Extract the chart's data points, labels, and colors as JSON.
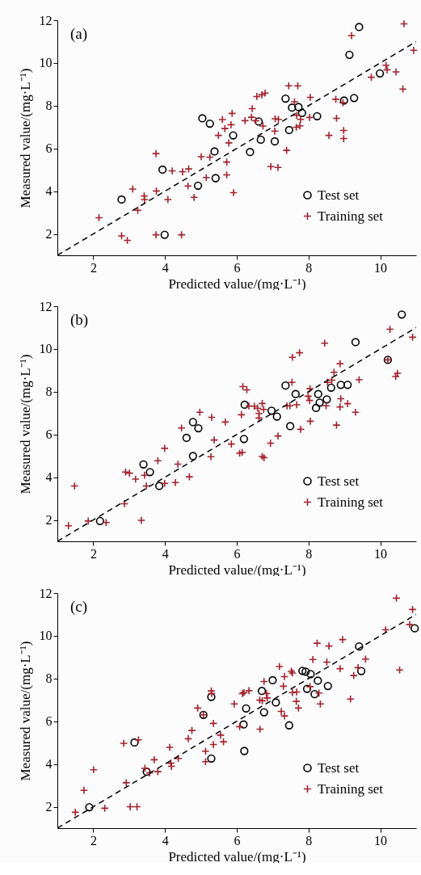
{
  "chart_data": [
    {
      "type": "scatter",
      "xlabel": "Predicted value/(mg·L⁻¹)",
      "ylabel": "Measured value/(mg·L⁻¹)",
      "xlim": [
        1,
        11
      ],
      "ylim": [
        1,
        12
      ],
      "xticks": [
        2,
        4,
        6,
        8,
        10
      ],
      "yticks": [
        2,
        4,
        6,
        8,
        10,
        12
      ],
      "legend": "bottom right",
      "annotations": [
        "(a)"
      ],
      "series": [
        {
          "name": "Test set",
          "color": "#000000",
          "marker": "circle",
          "x": [
            2.79,
            3.93,
            3.99,
            4.92,
            5.04,
            5.25,
            5.38,
            5.41,
            5.9,
            6.37,
            6.61,
            6.67,
            7.06,
            7.36,
            7.46,
            7.54,
            7.72,
            7.82,
            8.24,
            8.99,
            9.14,
            9.27,
            9.41,
            9.99
          ],
          "values": [
            3.61,
            5.01,
            1.96,
            4.26,
            7.41,
            7.16,
            5.86,
            4.61,
            6.61,
            5.83,
            7.26,
            6.41,
            6.33,
            8.33,
            6.86,
            7.91,
            7.94,
            7.66,
            7.51,
            8.24,
            10.38,
            8.36,
            11.68,
            9.51
          ]
        },
        {
          "name": "Training set",
          "color": "#a3222c",
          "marker": "cross",
          "x": [
            2.16,
            2.79,
            2.95,
            3.1,
            3.24,
            3.42,
            3.43,
            3.75,
            3.76,
            3.75,
            4.08,
            4.2,
            4.49,
            4.66,
            4.64,
            4.81,
            4.46,
            5.01,
            5.25,
            5.15,
            5.49,
            5.6,
            5.67,
            5.87,
            5.84,
            5.78,
            5.72,
            5.72,
            5.91,
            6.23,
            6.43,
            6.41,
            6.56,
            6.7,
            6.79,
            6.53,
            6.73,
            7.07,
            7.16,
            7.06,
            7.39,
            6.95,
            7.15,
            7.45,
            7.7,
            7.61,
            7.67,
            7.78,
            7.66,
            7.76,
            8.03,
            8.05,
            8.76,
            8.96,
            8.78,
            8.57,
            8.98,
            8.98,
            9.2,
            9.75,
            10.16,
            10.19,
            10.44,
            10.63,
            10.66,
            10.93
          ],
          "values": [
            2.76,
            1.91,
            1.7,
            4.1,
            3.11,
            3.78,
            3.61,
            5.76,
            4.01,
            1.96,
            3.61,
            4.95,
            4.91,
            5.04,
            4.24,
            3.71,
            1.96,
            5.61,
            5.59,
            4.64,
            6.61,
            7.35,
            6.93,
            7.64,
            7.11,
            6.26,
            5.36,
            4.76,
            3.93,
            7.3,
            7.86,
            7.46,
            8.43,
            8.51,
            8.59,
            7.3,
            7.05,
            7.39,
            7.36,
            6.81,
            5.91,
            5.15,
            5.11,
            8.93,
            8.93,
            8.18,
            7.55,
            7.36,
            6.99,
            7.06,
            7.45,
            8.39,
            8.3,
            8.14,
            7.41,
            6.61,
            6.84,
            6.46,
            11.28,
            9.33,
            9.89,
            9.68,
            9.58,
            8.78,
            11.83,
            10.59
          ]
        },
        {
          "type": "line",
          "color": "#000000",
          "line_style": "dashed",
          "x": [
            1,
            11
          ],
          "values": [
            1,
            11
          ]
        }
      ]
    },
    {
      "type": "scatter",
      "xlabel": "Predicted value/(mg·L⁻¹)",
      "ylabel": "Measured value/(mg·L⁻¹)",
      "xlim": [
        1,
        11
      ],
      "ylim": [
        1,
        12
      ],
      "xticks": [
        2,
        4,
        6,
        8,
        10
      ],
      "yticks": [
        2,
        4,
        6,
        8,
        10,
        12
      ],
      "legend": "bottom right",
      "annotations": [
        "(b)"
      ],
      "series": [
        {
          "name": "Test set",
          "color": "#000000",
          "marker": "circle",
          "x": [
            2.19,
            3.4,
            3.58,
            3.84,
            4.6,
            4.78,
            4.93,
            4.78,
            6.22,
            6.2,
            6.97,
            7.12,
            7.36,
            7.49,
            7.64,
            8.21,
            8.27,
            8.31,
            8.51,
            8.63,
            8.9,
            9.09,
            9.31,
            10.21,
            10.6
          ],
          "values": [
            1.95,
            4.6,
            4.24,
            3.59,
            5.84,
            6.58,
            6.29,
            4.99,
            7.39,
            5.79,
            7.11,
            6.84,
            8.29,
            6.39,
            7.89,
            7.24,
            7.89,
            7.49,
            7.64,
            8.19,
            8.32,
            8.32,
            10.32,
            9.49,
            11.61
          ]
        },
        {
          "name": "Training set",
          "color": "#a3222c",
          "marker": "cross",
          "x": [
            1.31,
            1.48,
            1.86,
            2.36,
            2.87,
            2.9,
            3.01,
            3.18,
            3.34,
            3.43,
            3.48,
            3.8,
            3.99,
            3.99,
            4.29,
            4.36,
            4.46,
            4.68,
            4.97,
            5.3,
            5.37,
            5.28,
            5.68,
            5.85,
            6.08,
            6.15,
            6.17,
            6.28,
            6.13,
            6.34,
            6.49,
            6.58,
            6.62,
            6.62,
            6.71,
            6.75,
            6.71,
            6.76,
            6.94,
            7.15,
            7.4,
            7.48,
            7.55,
            7.75,
            7.54,
            7.67,
            7.78,
            7.99,
            8.04,
            8.03,
            8.05,
            8.45,
            8.49,
            8.53,
            8.65,
            8.71,
            8.78,
            8.88,
            8.9,
            8.88,
            9.09,
            9.31,
            9.41,
            10.21,
            10.27,
            10.43,
            10.48,
            10.9
          ],
          "values": [
            1.73,
            3.59,
            1.95,
            1.88,
            2.76,
            4.24,
            4.19,
            3.91,
            1.98,
            4.09,
            3.59,
            4.77,
            5.35,
            3.71,
            3.75,
            4.61,
            6.3,
            4.02,
            7.04,
            6.8,
            5.74,
            4.96,
            6.58,
            5.55,
            5.12,
            5.16,
            8.24,
            8.09,
            6.92,
            7.33,
            7.32,
            7.23,
            6.98,
            6.77,
            7.45,
            7.17,
            4.97,
            4.91,
            5.59,
            5.93,
            7.33,
            7.34,
            9.61,
            9.82,
            8.44,
            7.39,
            6.24,
            7.79,
            8.14,
            7.59,
            6.62,
            10.27,
            7.34,
            8.44,
            8.54,
            8.91,
            6.44,
            9.31,
            7.67,
            7.29,
            7.44,
            7.04,
            8.56,
            9.49,
            10.92,
            8.71,
            8.86,
            10.55
          ]
        },
        {
          "type": "line",
          "color": "#000000",
          "line_style": "dashed",
          "x": [
            1,
            11
          ],
          "values": [
            1,
            11
          ]
        }
      ]
    },
    {
      "type": "scatter",
      "xlabel": "Predicted value/(mg·L⁻¹)",
      "ylabel": "Measured value/(mg·L⁻¹)",
      "xlim": [
        1,
        11
      ],
      "ylim": [
        1,
        12
      ],
      "xticks": [
        2,
        4,
        6,
        8,
        10
      ],
      "yticks": [
        2,
        4,
        6,
        8,
        10,
        12
      ],
      "legend": "bottom right",
      "annotations": [
        "(c)"
      ],
      "series": [
        {
          "name": "Test set",
          "color": "#000000",
          "marker": "circle",
          "x": [
            1.89,
            3.15,
            3.49,
            5.07,
            5.29,
            5.29,
            6.19,
            6.21,
            6.26,
            6.7,
            6.76,
            7.0,
            7.09,
            7.46,
            7.83,
            7.92,
            8.06,
            7.96,
            8.17,
            8.26,
            8.54,
            9.41,
            9.47,
            10.96
          ],
          "values": [
            1.98,
            5.01,
            3.64,
            6.3,
            7.14,
            4.26,
            5.85,
            4.61,
            6.6,
            7.42,
            6.42,
            7.92,
            6.88,
            5.81,
            8.36,
            8.32,
            8.21,
            7.52,
            7.27,
            7.9,
            7.65,
            9.5,
            8.35,
            10.35
          ]
        },
        {
          "name": "Training set",
          "color": "#a3222c",
          "marker": "cross",
          "x": [
            1.5,
            1.74,
            2.01,
            2.32,
            2.85,
            2.92,
            3.03,
            3.22,
            3.26,
            3.44,
            3.57,
            3.7,
            3.8,
            4.13,
            4.16,
            4.18,
            4.37,
            4.65,
            4.75,
            4.91,
            5.07,
            5.13,
            5.13,
            5.29,
            5.3,
            5.35,
            5.35,
            5.55,
            5.63,
            5.93,
            6.08,
            6.16,
            6.2,
            6.34,
            6.64,
            6.65,
            6.71,
            6.76,
            6.83,
            6.85,
            7.19,
            7.24,
            7.3,
            7.33,
            7.33,
            7.52,
            7.55,
            7.55,
            7.67,
            7.66,
            7.72,
            8.04,
            8.12,
            8.24,
            8.29,
            8.33,
            8.51,
            8.57,
            8.88,
            8.95,
            9.17,
            9.26,
            9.38,
            9.59,
            10.15,
            10.45,
            10.54,
            10.82,
            10.9
          ],
          "values": [
            1.74,
            2.77,
            3.73,
            1.93,
            4.97,
            3.12,
            2.0,
            2.0,
            5.13,
            3.8,
            3.58,
            4.2,
            3.64,
            4.78,
            4.04,
            3.89,
            4.26,
            5.18,
            5.57,
            6.62,
            6.3,
            4.6,
            4.11,
            7.42,
            7.3,
            5.9,
            4.91,
            5.35,
            5.04,
            6.81,
            5.75,
            7.3,
            7.34,
            7.43,
            6.99,
            5.63,
            6.96,
            7.86,
            7.3,
            7.09,
            8.56,
            6.46,
            7.64,
            6.25,
            8.09,
            8.34,
            8.26,
            7.34,
            7.37,
            6.93,
            6.62,
            7.62,
            8.89,
            9.65,
            7.32,
            6.81,
            8.77,
            9.52,
            8.46,
            9.82,
            7.04,
            8.14,
            8.51,
            8.91,
            10.28,
            11.76,
            8.4,
            10.52,
            11.23
          ]
        },
        {
          "type": "line",
          "color": "#000000",
          "line_style": "dashed",
          "x": [
            1,
            11
          ],
          "values": [
            1,
            11
          ]
        }
      ]
    }
  ]
}
